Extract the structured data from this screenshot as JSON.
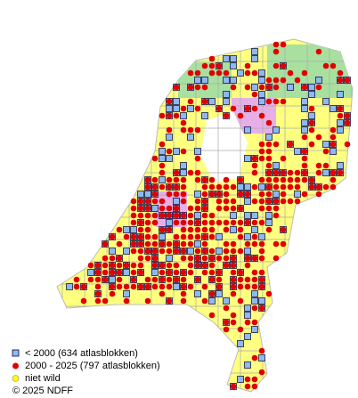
{
  "legend": {
    "items": [
      {
        "label": "< 2000   (634 atlasblokken)"
      },
      {
        "label": "2000 - 2025 (797 atlasblokken)"
      },
      {
        "label": "niet wild"
      }
    ],
    "copyright": "© 2025 NDFF"
  }
}
